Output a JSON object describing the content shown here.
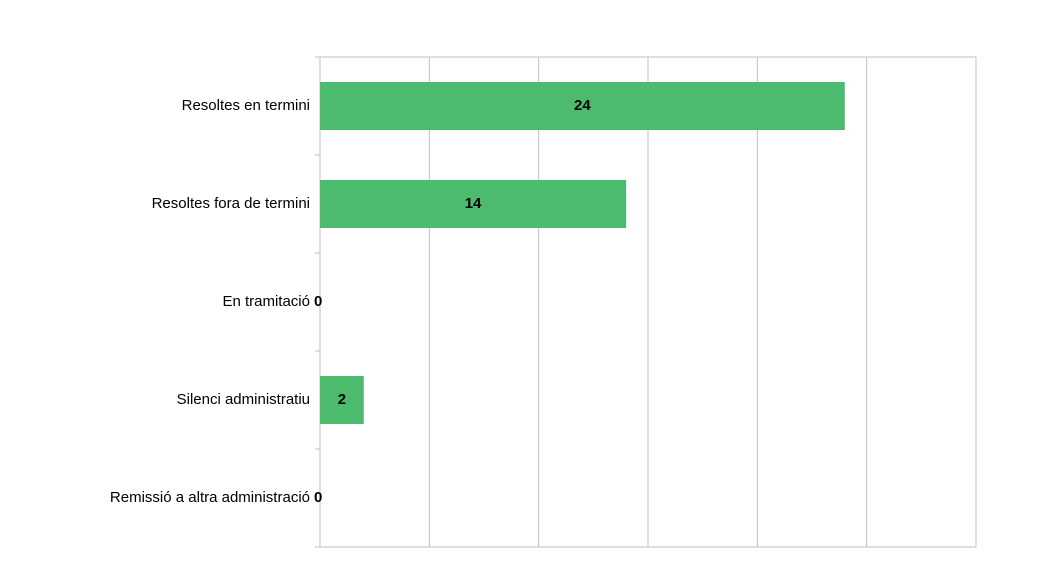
{
  "chart_data": {
    "type": "barh",
    "categories": [
      "Resoltes en termini",
      "Resoltes fora de termini",
      "En tramitació",
      "Silenci administratiu",
      "Remissió a altra administració"
    ],
    "values": [
      24,
      14,
      0,
      2,
      0
    ],
    "color": "#4dbb6e",
    "xlim": [
      0,
      30
    ],
    "xticks": [
      0,
      5,
      10,
      15,
      20,
      25,
      30
    ],
    "grid": true
  }
}
